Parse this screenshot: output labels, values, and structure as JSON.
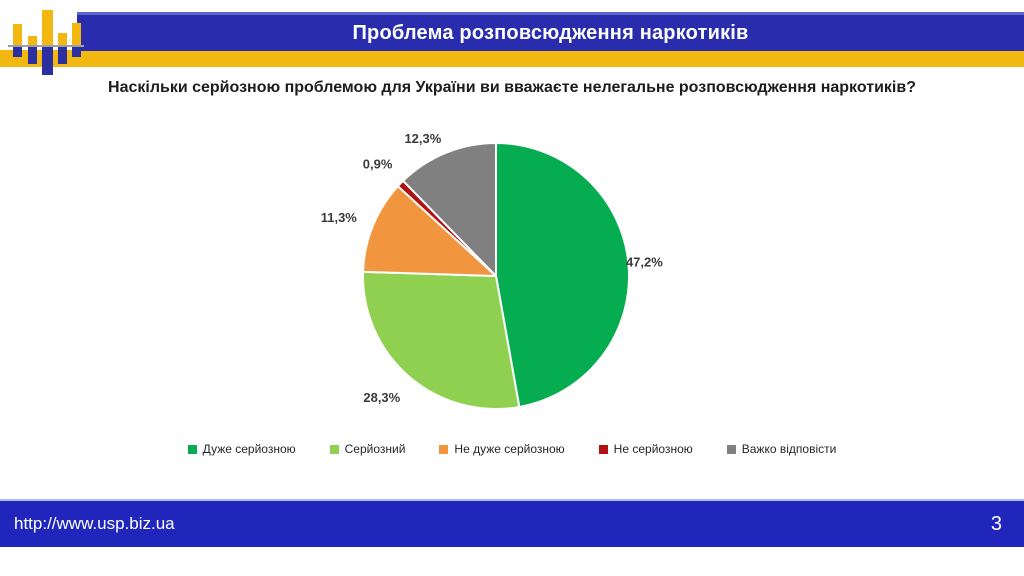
{
  "header": {
    "title": "Проблема розповсюдження наркотиків"
  },
  "question": "Наскільки серйозною проблемою для України ви вважаєте нелегальне розповсюдження наркотиків?",
  "chart_data": {
    "type": "pie",
    "title": "Наскільки серйозною проблемою для України ви вважаєте нелегальне розповсюдження наркотиків?",
    "labels": [
      "Дуже серйозною",
      "Серйозний",
      "Не дуже серйозною",
      "Не серйозною",
      "Важко відповісти"
    ],
    "values": [
      47.2,
      28.3,
      11.3,
      0.9,
      12.3
    ],
    "value_labels": [
      "47,2%",
      "28,3%",
      "11,3%",
      "0,9%",
      "12,3%"
    ],
    "colors": [
      "#06AC50",
      "#8FD051",
      "#F2953F",
      "#B01212",
      "#808080"
    ],
    "start_angle_deg": 0,
    "direction": "clockwise",
    "legend_position": "bottom",
    "slice_border_color": "#FFFFFF",
    "label_color": "#3B3B3B"
  },
  "footer": {
    "url": "http://www.usp.biz.ua",
    "page_number": "3"
  },
  "colors": {
    "header_blue": "#282CAD",
    "footer_blue": "#2026BC",
    "accent_yellow": "#F2B811"
  }
}
